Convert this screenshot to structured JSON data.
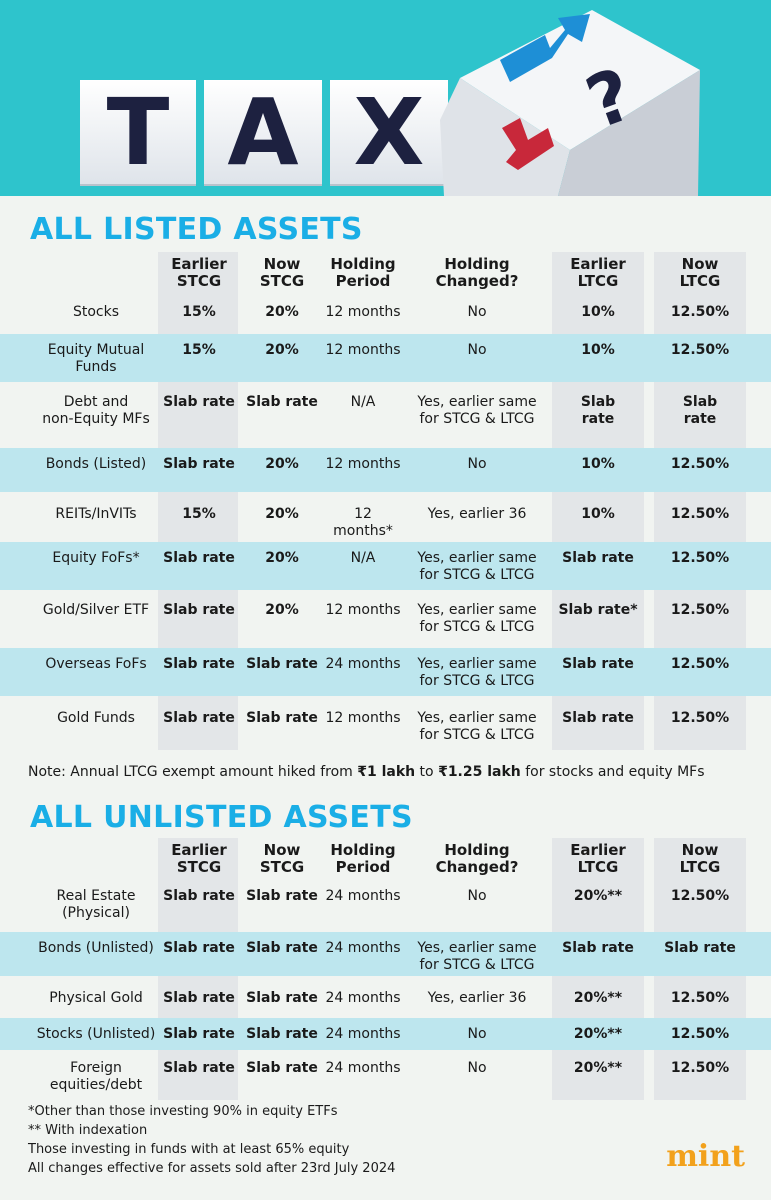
{
  "banner": {
    "letters": [
      "T",
      "A",
      "X"
    ],
    "question": "?"
  },
  "listed": {
    "title": "ALL LISTED ASSETS",
    "headers": [
      [
        "",
        ""
      ],
      [
        "Earlier",
        "STCG"
      ],
      [
        "Now",
        "STCG"
      ],
      [
        "Holding",
        "Period"
      ],
      [
        "Holding",
        "Changed?"
      ],
      [
        "Earlier",
        "LTCG"
      ],
      [
        "Now",
        "LTCG"
      ]
    ],
    "rows": [
      {
        "asset": [
          "Stocks"
        ],
        "earlier_stcg": [
          "15%"
        ],
        "now_stcg": [
          "20%"
        ],
        "period": [
          "12 months"
        ],
        "changed": [
          "No"
        ],
        "earlier_ltcg": [
          "10%"
        ],
        "now_ltcg": [
          "12.50%"
        ]
      },
      {
        "asset": [
          "Equity Mutual",
          "Funds"
        ],
        "earlier_stcg": [
          "15%"
        ],
        "now_stcg": [
          "20%"
        ],
        "period": [
          "12 months"
        ],
        "changed": [
          "No"
        ],
        "earlier_ltcg": [
          "10%"
        ],
        "now_ltcg": [
          "12.50%"
        ]
      },
      {
        "asset": [
          "Debt and",
          "non-Equity MFs"
        ],
        "earlier_stcg": [
          "Slab rate"
        ],
        "now_stcg": [
          "Slab rate"
        ],
        "period": [
          "N/A"
        ],
        "changed": [
          "Yes, earlier same",
          "for STCG & LTCG"
        ],
        "earlier_ltcg": [
          "Slab",
          "rate"
        ],
        "now_ltcg": [
          "Slab",
          "rate"
        ]
      },
      {
        "asset": [
          "Bonds (Listed)"
        ],
        "earlier_stcg": [
          "Slab rate"
        ],
        "now_stcg": [
          "20%"
        ],
        "period": [
          "12 months"
        ],
        "changed": [
          "No"
        ],
        "earlier_ltcg": [
          "10%"
        ],
        "now_ltcg": [
          "12.50%"
        ]
      },
      {
        "asset": [
          "REITs/InVITs"
        ],
        "earlier_stcg": [
          "15%"
        ],
        "now_stcg": [
          "20%"
        ],
        "period": [
          "12 months*"
        ],
        "changed": [
          "Yes, earlier 36"
        ],
        "earlier_ltcg": [
          "10%"
        ],
        "now_ltcg": [
          "12.50%"
        ]
      },
      {
        "asset": [
          "Equity FoFs*"
        ],
        "earlier_stcg": [
          "Slab rate"
        ],
        "now_stcg": [
          "20%"
        ],
        "period": [
          "N/A"
        ],
        "changed": [
          "Yes, earlier same",
          "for STCG & LTCG"
        ],
        "earlier_ltcg": [
          "Slab rate"
        ],
        "now_ltcg": [
          "12.50%"
        ]
      },
      {
        "asset": [
          "Gold/Silver ETF"
        ],
        "earlier_stcg": [
          "Slab rate"
        ],
        "now_stcg": [
          "20%"
        ],
        "period": [
          "12 months"
        ],
        "changed": [
          "Yes, earlier same",
          "for STCG & LTCG"
        ],
        "earlier_ltcg": [
          "Slab rate*"
        ],
        "now_ltcg": [
          "12.50%"
        ]
      },
      {
        "asset": [
          "Overseas FoFs"
        ],
        "earlier_stcg": [
          "Slab rate"
        ],
        "now_stcg": [
          "Slab rate"
        ],
        "period": [
          "24 months"
        ],
        "changed": [
          "Yes, earlier same",
          "for STCG & LTCG"
        ],
        "earlier_ltcg": [
          "Slab rate"
        ],
        "now_ltcg": [
          "12.50%"
        ]
      },
      {
        "asset": [
          "Gold Funds"
        ],
        "earlier_stcg": [
          "Slab rate"
        ],
        "now_stcg": [
          "Slab rate"
        ],
        "period": [
          "12 months"
        ],
        "changed": [
          "Yes, earlier same",
          "for STCG & LTCG"
        ],
        "earlier_ltcg": [
          "Slab rate"
        ],
        "now_ltcg": [
          "12.50%"
        ]
      }
    ],
    "note": {
      "prefix": "Note: Annual LTCG exempt amount hiked from ",
      "from": "₹1 lakh",
      "mid": " to ",
      "to": "₹1.25 lakh",
      "suffix": " for stocks and equity MFs"
    }
  },
  "unlisted": {
    "title": "ALL UNLISTED ASSETS",
    "headers": [
      [
        "",
        ""
      ],
      [
        "Earlier",
        "STCG"
      ],
      [
        "Now",
        "STCG"
      ],
      [
        "Holding",
        "Period"
      ],
      [
        "Holding",
        "Changed?"
      ],
      [
        "Earlier",
        "LTCG"
      ],
      [
        "Now",
        "LTCG"
      ]
    ],
    "rows": [
      {
        "asset": [
          "Real Estate",
          "(Physical)"
        ],
        "earlier_stcg": [
          "Slab rate"
        ],
        "now_stcg": [
          "Slab rate"
        ],
        "period": [
          "24 months"
        ],
        "changed": [
          "No"
        ],
        "earlier_ltcg": [
          "20%**"
        ],
        "now_ltcg": [
          "12.50%"
        ]
      },
      {
        "asset": [
          "Bonds (Unlisted)"
        ],
        "earlier_stcg": [
          "Slab rate"
        ],
        "now_stcg": [
          "Slab rate"
        ],
        "period": [
          "24 months"
        ],
        "changed": [
          "Yes, earlier same",
          "for STCG & LTCG"
        ],
        "earlier_ltcg": [
          "Slab rate"
        ],
        "now_ltcg": [
          "Slab rate"
        ]
      },
      {
        "asset": [
          "Physical Gold"
        ],
        "earlier_stcg": [
          "Slab rate"
        ],
        "now_stcg": [
          "Slab rate"
        ],
        "period": [
          "24 months"
        ],
        "changed": [
          "Yes, earlier 36"
        ],
        "earlier_ltcg": [
          "20%**"
        ],
        "now_ltcg": [
          "12.50%"
        ]
      },
      {
        "asset": [
          "Stocks (Unlisted)"
        ],
        "earlier_stcg": [
          "Slab rate"
        ],
        "now_stcg": [
          "Slab rate"
        ],
        "period": [
          "24 months"
        ],
        "changed": [
          "No"
        ],
        "earlier_ltcg": [
          "20%**"
        ],
        "now_ltcg": [
          "12.50%"
        ]
      },
      {
        "asset": [
          "Foreign",
          "equities/debt"
        ],
        "earlier_stcg": [
          "Slab rate"
        ],
        "now_stcg": [
          "Slab rate"
        ],
        "period": [
          "24 months"
        ],
        "changed": [
          "No"
        ],
        "earlier_ltcg": [
          "20%**"
        ],
        "now_ltcg": [
          "12.50%"
        ]
      }
    ]
  },
  "footnotes": [
    "*Other than those investing 90% in equity ETFs",
    "** With indexation",
    "Those investing in funds with at least 65% equity",
    "All changes effective for assets sold after 23rd July 2024"
  ],
  "brand": "mint",
  "colors": {
    "banner": "#2ec4cc",
    "title": "#1aaee6",
    "shade": "#bde6ee",
    "column": "#e3e6e8",
    "brand": "#f2a11c",
    "arrow_up": "#1e8fd6",
    "arrow_down": "#c8283a",
    "ink": "#1d2140"
  }
}
